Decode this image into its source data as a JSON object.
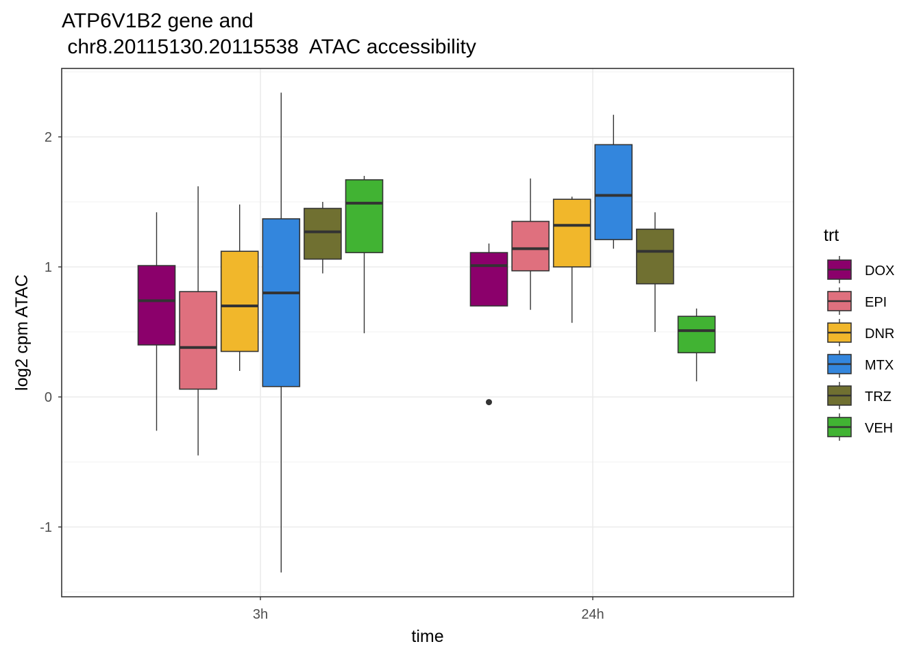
{
  "chart_data": {
    "type": "boxplot",
    "title": [
      "ATP6V1B2  gene and",
      " chr8.20115130.20115538  ATAC accessibility"
    ],
    "xlabel": "time",
    "ylabel": "log2 cpm ATAC",
    "categories": [
      "3h",
      "24h"
    ],
    "ylim": [
      -1.5,
      2.5
    ],
    "y_ticks": [
      -1,
      0,
      1,
      2
    ],
    "y_tick_labels": [
      "-1",
      "0",
      "1",
      "2"
    ],
    "grid": true,
    "legend": {
      "title": "trt",
      "position": "right",
      "items": [
        {
          "name": "DOX",
          "color": "#8B006B"
        },
        {
          "name": "EPI",
          "color": "#DF707E"
        },
        {
          "name": "DNR",
          "color": "#F1B72B"
        },
        {
          "name": "MTX",
          "color": "#3386DD"
        },
        {
          "name": "TRZ",
          "color": "#707031"
        },
        {
          "name": "VEH",
          "color": "#41B333"
        }
      ]
    },
    "series": [
      {
        "name": "DOX",
        "boxes": [
          {
            "time": "3h",
            "whisker_low": -0.26,
            "q1": 0.4,
            "median": 0.74,
            "q3": 1.01,
            "whisker_high": 1.42,
            "outliers": []
          },
          {
            "time": "24h",
            "whisker_low": 0.7,
            "q1": 0.7,
            "median": 1.01,
            "q3": 1.11,
            "whisker_high": 1.18,
            "outliers": [
              -0.04
            ]
          }
        ]
      },
      {
        "name": "EPI",
        "boxes": [
          {
            "time": "3h",
            "whisker_low": -0.45,
            "q1": 0.06,
            "median": 0.38,
            "q3": 0.81,
            "whisker_high": 1.62,
            "outliers": []
          },
          {
            "time": "24h",
            "whisker_low": 0.67,
            "q1": 0.97,
            "median": 1.14,
            "q3": 1.35,
            "whisker_high": 1.68,
            "outliers": []
          }
        ]
      },
      {
        "name": "DNR",
        "boxes": [
          {
            "time": "3h",
            "whisker_low": 0.2,
            "q1": 0.35,
            "median": 0.7,
            "q3": 1.12,
            "whisker_high": 1.48,
            "outliers": []
          },
          {
            "time": "24h",
            "whisker_low": 0.57,
            "q1": 1.0,
            "median": 1.32,
            "q3": 1.52,
            "whisker_high": 1.54,
            "outliers": []
          }
        ]
      },
      {
        "name": "MTX",
        "boxes": [
          {
            "time": "3h",
            "whisker_low": -1.35,
            "q1": 0.08,
            "median": 0.8,
            "q3": 1.37,
            "whisker_high": 2.34,
            "outliers": []
          },
          {
            "time": "24h",
            "whisker_low": 1.14,
            "q1": 1.21,
            "median": 1.55,
            "q3": 1.94,
            "whisker_high": 2.17,
            "outliers": []
          }
        ]
      },
      {
        "name": "TRZ",
        "boxes": [
          {
            "time": "3h",
            "whisker_low": 0.95,
            "q1": 1.06,
            "median": 1.27,
            "q3": 1.45,
            "whisker_high": 1.5,
            "outliers": []
          },
          {
            "time": "24h",
            "whisker_low": 0.5,
            "q1": 0.87,
            "median": 1.12,
            "q3": 1.29,
            "whisker_high": 1.42,
            "outliers": []
          }
        ]
      },
      {
        "name": "VEH",
        "boxes": [
          {
            "time": "3h",
            "whisker_low": 0.49,
            "q1": 1.11,
            "median": 1.49,
            "q3": 1.67,
            "whisker_high": 1.7,
            "outliers": []
          },
          {
            "time": "24h",
            "whisker_low": 0.12,
            "q1": 0.34,
            "median": 0.51,
            "q3": 0.62,
            "whisker_high": 0.68,
            "outliers": []
          }
        ]
      }
    ]
  }
}
